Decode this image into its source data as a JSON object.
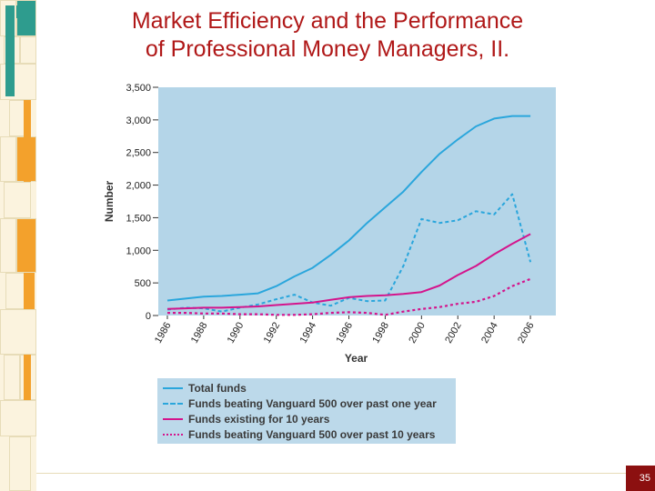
{
  "slide": {
    "title_line1": "Market Efficiency and the Performance",
    "title_line2": "of Professional Money Managers, II.",
    "page_number": "35"
  },
  "colors": {
    "plot_bg": "#b4d5e8",
    "total": "#2aa6dc",
    "beat1": "#2aa6dc",
    "exist10": "#d4148c",
    "beat10": "#d4148c",
    "title": "#b01818",
    "page_badge": "#8c1010"
  },
  "chart_data": {
    "type": "line",
    "title": "",
    "xlabel": "Year",
    "ylabel": "Number",
    "xlim": [
      1985.5,
      2007.4
    ],
    "ylim": [
      0,
      3500
    ],
    "x_ticks": [
      1986,
      1988,
      1990,
      1992,
      1994,
      1996,
      1998,
      2000,
      2002,
      2004,
      2006
    ],
    "y_ticks": [
      0,
      500,
      1000,
      1500,
      2000,
      2500,
      3000,
      3500
    ],
    "y_tick_labels": [
      "0",
      "500",
      "1,000",
      "1,500",
      "2,000",
      "2,500",
      "3,000",
      "3,500"
    ],
    "legend_position": "below",
    "series": [
      {
        "name": "Total funds",
        "style": "solid",
        "color_key": "total",
        "x": [
          1986,
          1987,
          1988,
          1989,
          1990,
          1991,
          1992,
          1993,
          1994,
          1995,
          1996,
          1997,
          1998,
          1999,
          2000,
          2001,
          2002,
          2003,
          2004,
          2005,
          2006
        ],
        "y": [
          230,
          260,
          290,
          300,
          320,
          340,
          450,
          600,
          730,
          930,
          1150,
          1420,
          1660,
          1900,
          2200,
          2480,
          2700,
          2900,
          3020,
          3060,
          3060
        ]
      },
      {
        "name": "Funds beating Vanguard 500 over past one year",
        "style": "dashed",
        "color_key": "beat1",
        "x": [
          1986,
          1987,
          1988,
          1989,
          1990,
          1991,
          1992,
          1993,
          1994,
          1995,
          1996,
          1997,
          1998,
          1999,
          2000,
          2001,
          2002,
          2003,
          2004,
          2005,
          2006
        ],
        "y": [
          90,
          120,
          110,
          60,
          120,
          170,
          250,
          320,
          200,
          150,
          270,
          220,
          230,
          760,
          1480,
          1420,
          1460,
          1600,
          1550,
          1860,
          820
        ]
      },
      {
        "name": "Funds existing for 10 years",
        "style": "solid",
        "color_key": "exist10",
        "x": [
          1986,
          1987,
          1988,
          1989,
          1990,
          1991,
          1992,
          1993,
          1994,
          1995,
          1996,
          1997,
          1998,
          1999,
          2000,
          2001,
          2002,
          2003,
          2004,
          2005,
          2006
        ],
        "y": [
          100,
          110,
          120,
          120,
          130,
          140,
          160,
          180,
          200,
          240,
          280,
          300,
          310,
          330,
          360,
          460,
          620,
          760,
          940,
          1100,
          1250
        ]
      },
      {
        "name": "Funds beating Vanguard 500 over past 10 years",
        "style": "dotted",
        "color_key": "beat10",
        "x": [
          1986,
          1987,
          1988,
          1989,
          1990,
          1991,
          1992,
          1993,
          1994,
          1995,
          1996,
          1997,
          1998,
          1999,
          2000,
          2001,
          2002,
          2003,
          2004,
          2005,
          2006
        ],
        "y": [
          40,
          40,
          30,
          30,
          20,
          20,
          10,
          10,
          20,
          40,
          50,
          40,
          10,
          60,
          100,
          130,
          180,
          210,
          300,
          450,
          560
        ]
      }
    ]
  }
}
